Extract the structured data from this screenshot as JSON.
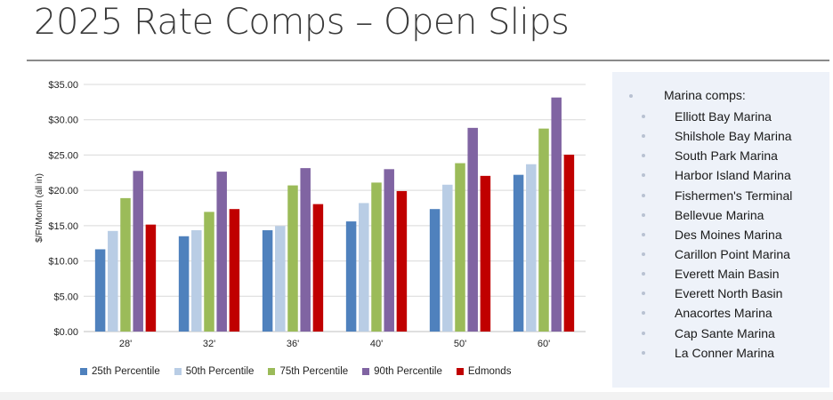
{
  "title": "2025 Rate Comps – Open Slips",
  "colors": {
    "p25": "#4f81bd",
    "p50": "#b9cde5",
    "p75": "#9bbb59",
    "p90": "#8064a2",
    "edmonds": "#c00000",
    "grid": "#d9d9d9",
    "axis": "#bfbfbf"
  },
  "chart_data": {
    "type": "bar",
    "title": "",
    "xlabel": "",
    "ylabel": "$/Ft/Month (all in)",
    "ylim": [
      0,
      35
    ],
    "ytick_values": [
      0,
      5,
      10,
      15,
      20,
      25,
      30,
      35
    ],
    "yticks": [
      "$0.00",
      "$5.00",
      "$10.00",
      "$15.00",
      "$20.00",
      "$25.00",
      "$30.00",
      "$35.00"
    ],
    "grid": true,
    "legend_position": "bottom",
    "categories": [
      "28'",
      "32'",
      "36'",
      "40'",
      "50'",
      "60'"
    ],
    "series": [
      {
        "name": "25th Percentile",
        "color_key": "p25",
        "values": [
          11.65,
          13.5,
          14.35,
          15.6,
          17.35,
          22.2
        ]
      },
      {
        "name": "50th Percentile",
        "color_key": "p50",
        "values": [
          14.25,
          14.35,
          14.95,
          18.2,
          20.8,
          23.7
        ]
      },
      {
        "name": "75th Percentile",
        "color_key": "p75",
        "values": [
          18.9,
          16.95,
          20.7,
          21.1,
          23.85,
          28.75
        ]
      },
      {
        "name": "90th Percentile",
        "color_key": "p90",
        "values": [
          22.75,
          22.65,
          23.15,
          23.0,
          28.85,
          33.15
        ]
      },
      {
        "name": "Edmonds",
        "color_key": "edmonds",
        "values": [
          15.15,
          17.35,
          18.05,
          19.9,
          22.05,
          25.05
        ]
      }
    ]
  },
  "comps": {
    "heading": "Marina comps:",
    "items": [
      "Elliott Bay Marina",
      "Shilshole Bay Marina",
      "South Park Marina",
      "Harbor Island Marina",
      "Fishermen's Terminal",
      "Bellevue Marina",
      "Des Moines Marina",
      "Carillon Point Marina",
      "Everett Main Basin",
      "Everett North Basin",
      "Anacortes Marina",
      "Cap Sante Marina",
      "La Conner Marina"
    ]
  }
}
